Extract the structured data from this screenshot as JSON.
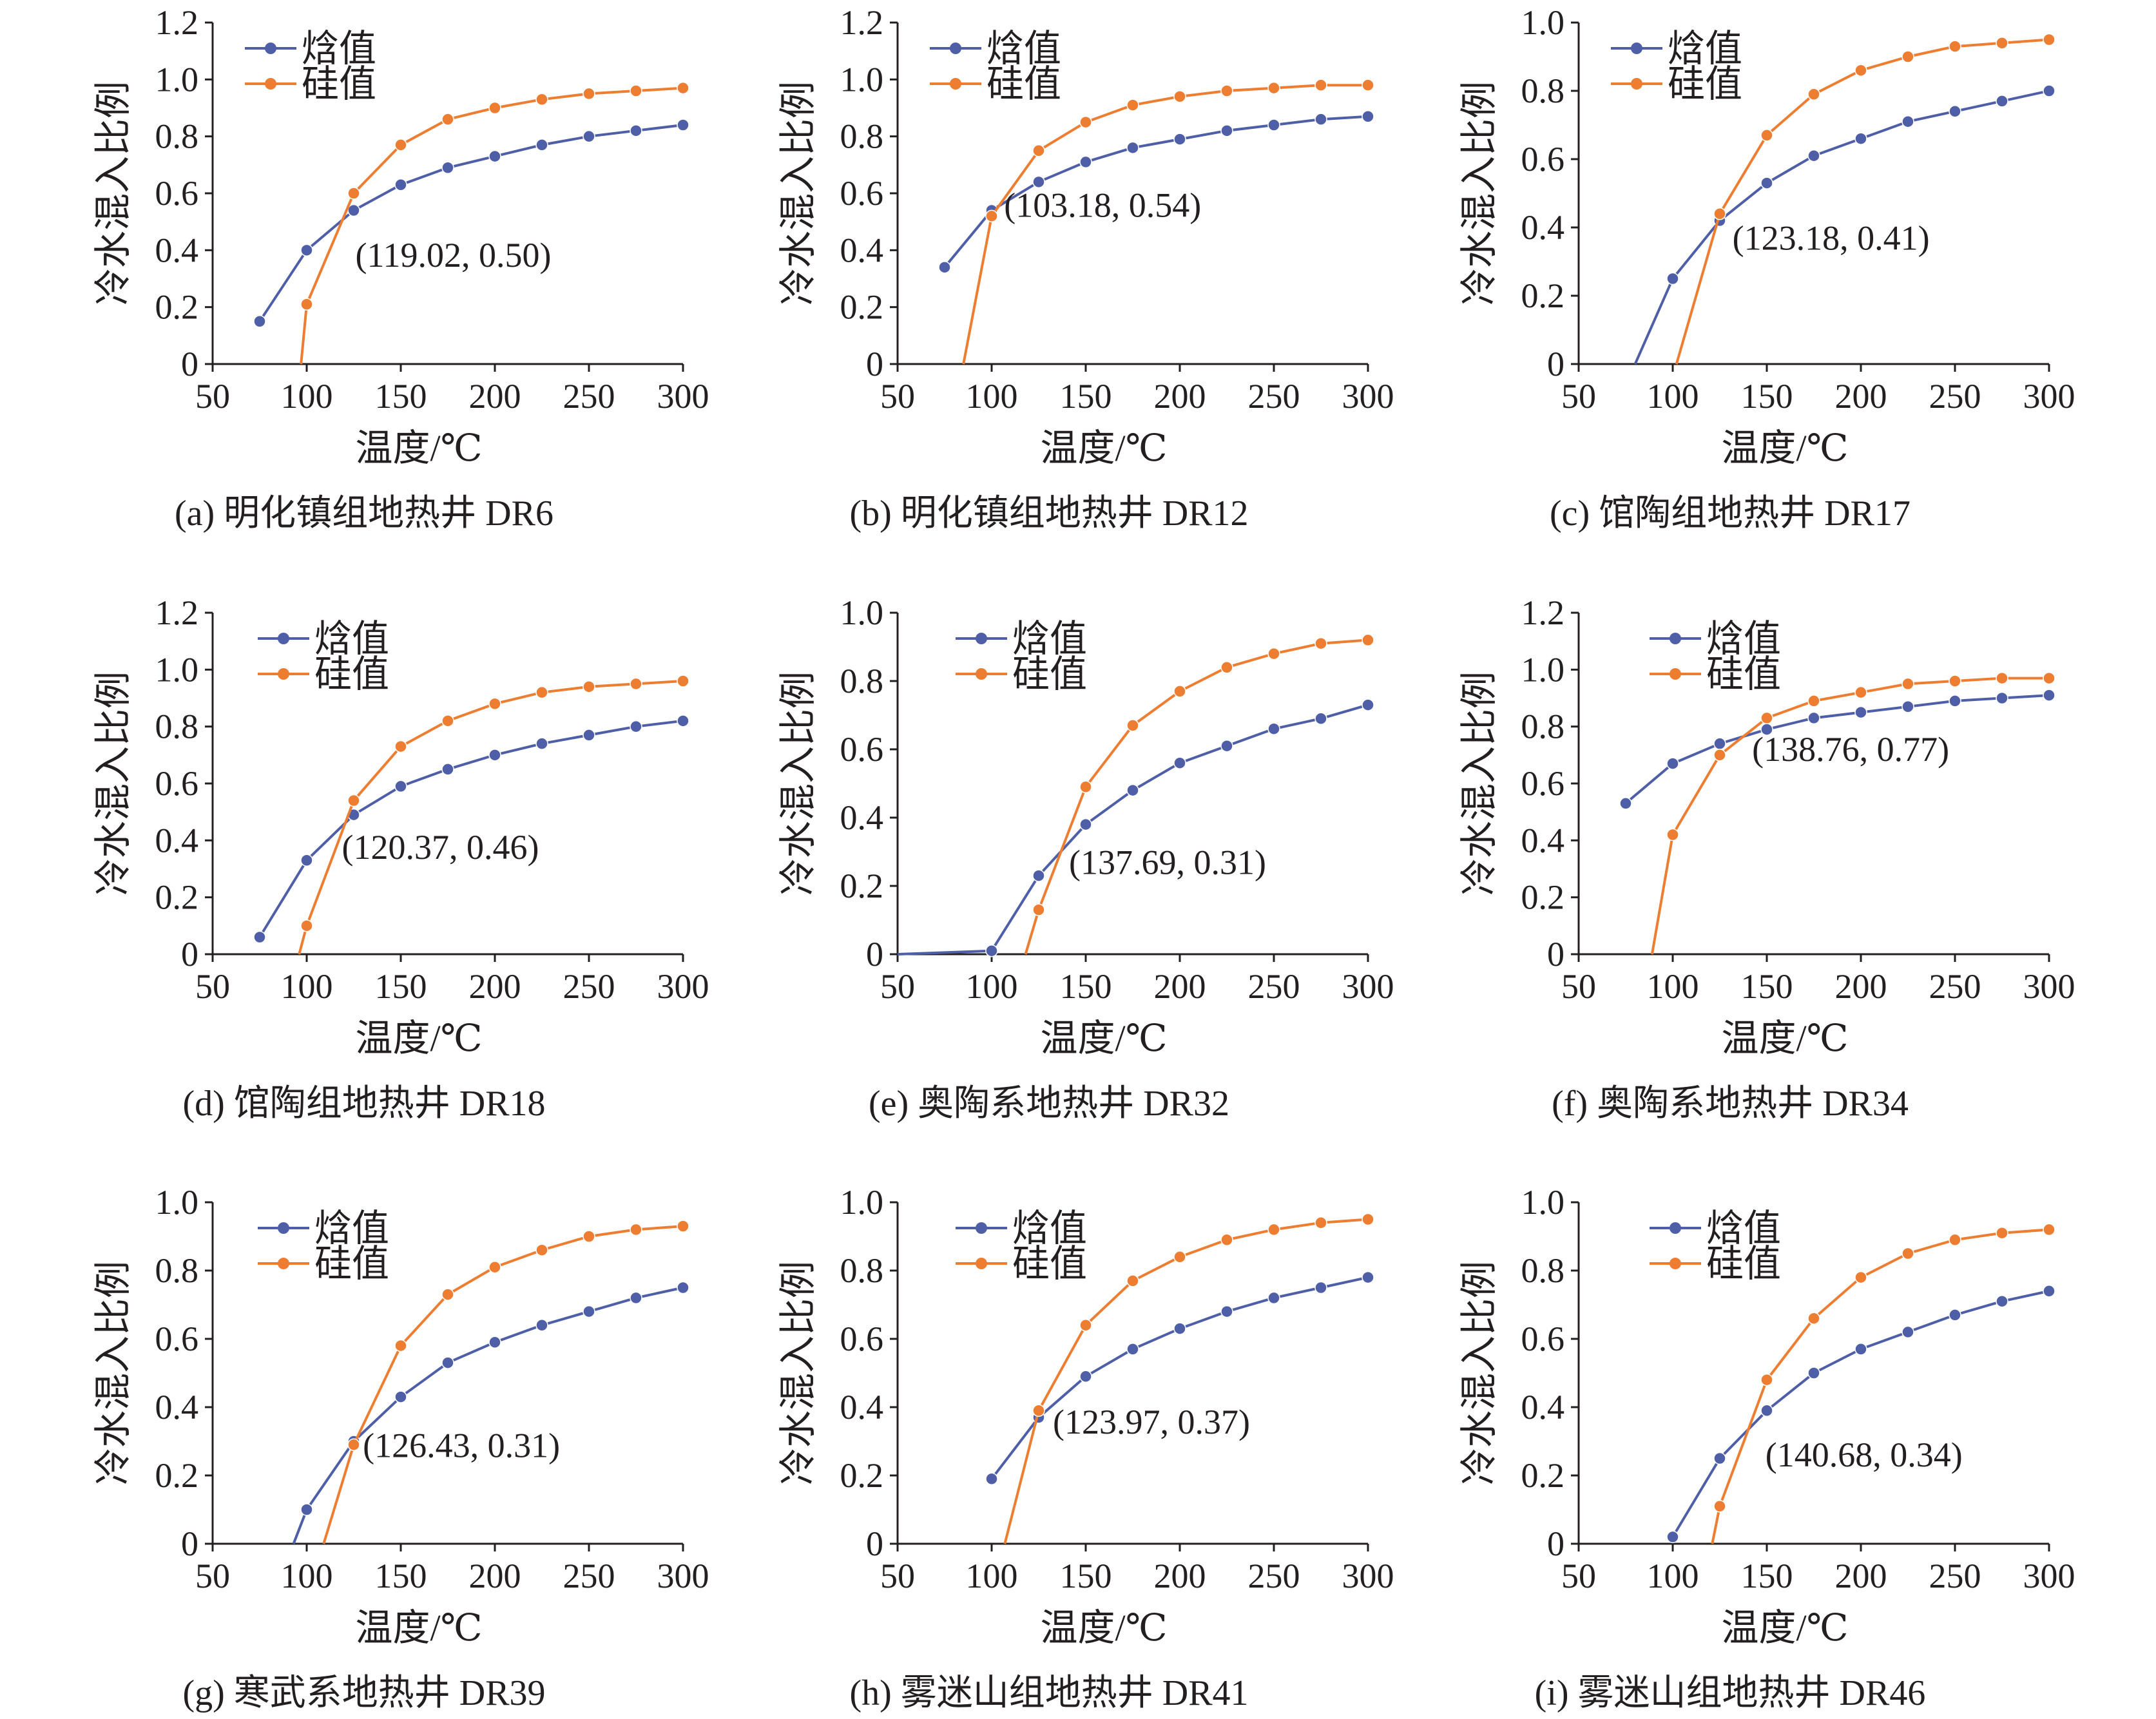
{
  "figure": {
    "colors": {
      "enthalpy": "#4e5fa8",
      "silica": "#ed7d31",
      "axis": "#231f20"
    },
    "legend": [
      "焓值",
      "硅值"
    ],
    "ylabel": "冷水混入比例",
    "xlabel": "温度/℃"
  },
  "chart_data": [
    {
      "type": "line",
      "caption": "(a) 明化镇组地热井 DR6",
      "xlabel": "温度/℃",
      "ylabel": "冷水混入比例",
      "xlim": [
        50,
        300
      ],
      "ylim": [
        0,
        1.2
      ],
      "xticks": [
        "50",
        "100",
        "150",
        "200",
        "250",
        "300"
      ],
      "yticks": [
        "0",
        "0.2",
        "0.4",
        "0.6",
        "0.8",
        "1.0",
        "1.2"
      ],
      "legend_position": "top-left",
      "annotation": "(119.02, 0.50)",
      "intersection": [
        119.02,
        0.5
      ],
      "series": [
        {
          "name": "焓值",
          "color": "#4e5fa8",
          "x": [
            75,
            100,
            125,
            150,
            175,
            200,
            225,
            250,
            275,
            300
          ],
          "y": [
            0.15,
            0.4,
            0.54,
            0.63,
            0.69,
            0.73,
            0.77,
            0.8,
            0.82,
            0.84
          ]
        },
        {
          "name": "硅值",
          "color": "#ed7d31",
          "x": [
            97,
            100,
            125,
            150,
            175,
            200,
            225,
            250,
            275,
            300
          ],
          "y": [
            0.0,
            0.21,
            0.6,
            0.77,
            0.86,
            0.9,
            0.93,
            0.95,
            0.96,
            0.97
          ],
          "markers_from": 1
        }
      ]
    },
    {
      "type": "line",
      "caption": "(b) 明化镇组地热井 DR12",
      "xlabel": "温度/℃",
      "ylabel": "冷水混入比例",
      "xlim": [
        50,
        300
      ],
      "ylim": [
        0,
        1.2
      ],
      "xticks": [
        "50",
        "100",
        "150",
        "200",
        "250",
        "300"
      ],
      "yticks": [
        "0",
        "0.2",
        "0.4",
        "0.6",
        "0.8",
        "1.0",
        "1.2"
      ],
      "legend_position": "top-left",
      "annotation": "(103.18, 0.54)",
      "intersection": [
        103.18,
        0.54
      ],
      "series": [
        {
          "name": "焓值",
          "color": "#4e5fa8",
          "x": [
            75,
            100,
            125,
            150,
            175,
            200,
            225,
            250,
            275,
            300
          ],
          "y": [
            0.34,
            0.54,
            0.64,
            0.71,
            0.76,
            0.79,
            0.82,
            0.84,
            0.86,
            0.87
          ]
        },
        {
          "name": "硅值",
          "color": "#ed7d31",
          "x": [
            85,
            100,
            125,
            150,
            175,
            200,
            225,
            250,
            275,
            300
          ],
          "y": [
            0.0,
            0.52,
            0.75,
            0.85,
            0.91,
            0.94,
            0.96,
            0.97,
            0.98,
            0.98
          ],
          "markers_from": 1
        }
      ]
    },
    {
      "type": "line",
      "caption": "(c) 馆陶组地热井 DR17",
      "xlabel": "温度/℃",
      "ylabel": "冷水混入比例",
      "xlim": [
        50,
        300
      ],
      "ylim": [
        0,
        1.0
      ],
      "xticks": [
        "50",
        "100",
        "150",
        "200",
        "250",
        "300"
      ],
      "yticks": [
        "0",
        "0.2",
        "0.4",
        "0.6",
        "0.8",
        "1.0"
      ],
      "legend_position": "top-left",
      "annotation": "(123.18, 0.41)",
      "intersection": [
        123.18,
        0.41
      ],
      "series": [
        {
          "name": "焓值",
          "color": "#4e5fa8",
          "x": [
            80,
            100,
            125,
            150,
            175,
            200,
            225,
            250,
            275,
            300
          ],
          "y": [
            0.0,
            0.25,
            0.42,
            0.53,
            0.61,
            0.66,
            0.71,
            0.74,
            0.77,
            0.8
          ],
          "markers_from": 1
        },
        {
          "name": "硅值",
          "color": "#ed7d31",
          "x": [
            102,
            125,
            150,
            175,
            200,
            225,
            250,
            275,
            300
          ],
          "y": [
            0.0,
            0.44,
            0.67,
            0.79,
            0.86,
            0.9,
            0.93,
            0.94,
            0.95
          ],
          "markers_from": 1
        }
      ]
    },
    {
      "type": "line",
      "caption": "(d) 馆陶组地热井 DR18",
      "xlabel": "温度/℃",
      "ylabel": "冷水混入比例",
      "xlim": [
        50,
        300
      ],
      "ylim": [
        0,
        1.2
      ],
      "xticks": [
        "50",
        "100",
        "150",
        "200",
        "250",
        "300"
      ],
      "yticks": [
        "0",
        "0.2",
        "0.4",
        "0.6",
        "0.8",
        "1.0",
        "1.2"
      ],
      "legend_position": "top-left",
      "annotation": "(120.37, 0.46)",
      "intersection": [
        120.37,
        0.46
      ],
      "series": [
        {
          "name": "焓值",
          "color": "#4e5fa8",
          "x": [
            75,
            100,
            125,
            150,
            175,
            200,
            225,
            250,
            275,
            300
          ],
          "y": [
            0.06,
            0.33,
            0.49,
            0.59,
            0.65,
            0.7,
            0.74,
            0.77,
            0.8,
            0.82
          ]
        },
        {
          "name": "硅值",
          "color": "#ed7d31",
          "x": [
            96,
            100,
            125,
            150,
            175,
            200,
            225,
            250,
            275,
            300
          ],
          "y": [
            0.0,
            0.1,
            0.54,
            0.73,
            0.82,
            0.88,
            0.92,
            0.94,
            0.95,
            0.96
          ],
          "markers_from": 1
        }
      ]
    },
    {
      "type": "line",
      "caption": "(e) 奥陶系地热井 DR32",
      "xlabel": "温度/℃",
      "ylabel": "冷水混入比例",
      "xlim": [
        50,
        300
      ],
      "ylim": [
        0,
        1.0
      ],
      "xticks": [
        "50",
        "100",
        "150",
        "200",
        "250",
        "300"
      ],
      "yticks": [
        "0",
        "0.2",
        "0.4",
        "0.6",
        "0.8",
        "1.0"
      ],
      "legend_position": "top-left",
      "annotation": "(137.69, 0.31)",
      "intersection": [
        137.69,
        0.31
      ],
      "series": [
        {
          "name": "焓值",
          "color": "#4e5fa8",
          "x": [
            50,
            100,
            125,
            150,
            175,
            200,
            225,
            250,
            275,
            300
          ],
          "y": [
            0.0,
            0.01,
            0.23,
            0.38,
            0.48,
            0.56,
            0.61,
            0.66,
            0.69,
            0.73
          ],
          "markers_from": 1
        },
        {
          "name": "硅值",
          "color": "#ed7d31",
          "x": [
            118,
            125,
            150,
            175,
            200,
            225,
            250,
            275,
            300
          ],
          "y": [
            0.0,
            0.13,
            0.49,
            0.67,
            0.77,
            0.84,
            0.88,
            0.91,
            0.92
          ],
          "markers_from": 1
        }
      ]
    },
    {
      "type": "line",
      "caption": "(f) 奥陶系地热井 DR34",
      "xlabel": "温度/℃",
      "ylabel": "冷水混入比例",
      "xlim": [
        50,
        300
      ],
      "ylim": [
        0,
        1.2
      ],
      "xticks": [
        "50",
        "100",
        "150",
        "200",
        "250",
        "300"
      ],
      "yticks": [
        "0",
        "0.2",
        "0.4",
        "0.6",
        "0.8",
        "1.0",
        "1.2"
      ],
      "legend_position": "top-left",
      "annotation": "(138.76, 0.77)",
      "intersection": [
        138.76,
        0.77
      ],
      "series": [
        {
          "name": "焓值",
          "color": "#4e5fa8",
          "x": [
            75,
            100,
            125,
            150,
            175,
            200,
            225,
            250,
            275,
            300
          ],
          "y": [
            0.53,
            0.67,
            0.74,
            0.79,
            0.83,
            0.85,
            0.87,
            0.89,
            0.9,
            0.91
          ]
        },
        {
          "name": "硅值",
          "color": "#ed7d31",
          "x": [
            89,
            100,
            125,
            150,
            175,
            200,
            225,
            250,
            275,
            300
          ],
          "y": [
            0.0,
            0.42,
            0.7,
            0.83,
            0.89,
            0.92,
            0.95,
            0.96,
            0.97,
            0.97
          ],
          "markers_from": 1
        }
      ]
    },
    {
      "type": "line",
      "caption": "(g) 寒武系地热井 DR39",
      "xlabel": "温度/℃",
      "ylabel": "冷水混入比例",
      "xlim": [
        50,
        300
      ],
      "ylim": [
        0,
        1.0
      ],
      "xticks": [
        "50",
        "100",
        "150",
        "200",
        "250",
        "300"
      ],
      "yticks": [
        "0",
        "0.2",
        "0.4",
        "0.6",
        "0.8",
        "1.0"
      ],
      "legend_position": "top-left",
      "annotation": "(126.43, 0.31)",
      "intersection": [
        126.43,
        0.31
      ],
      "series": [
        {
          "name": "焓值",
          "color": "#4e5fa8",
          "x": [
            93,
            100,
            125,
            150,
            175,
            200,
            225,
            250,
            275,
            300
          ],
          "y": [
            0.0,
            0.1,
            0.3,
            0.43,
            0.53,
            0.59,
            0.64,
            0.68,
            0.72,
            0.75
          ],
          "markers_from": 1
        },
        {
          "name": "硅值",
          "color": "#ed7d31",
          "x": [
            109,
            125,
            150,
            175,
            200,
            225,
            250,
            275,
            300
          ],
          "y": [
            0.0,
            0.29,
            0.58,
            0.73,
            0.81,
            0.86,
            0.9,
            0.92,
            0.93
          ],
          "markers_from": 1
        }
      ]
    },
    {
      "type": "line",
      "caption": "(h) 雾迷山组地热井 DR41",
      "xlabel": "温度/℃",
      "ylabel": "冷水混入比例",
      "xlim": [
        50,
        300
      ],
      "ylim": [
        0,
        1.0
      ],
      "xticks": [
        "50",
        "100",
        "150",
        "200",
        "250",
        "300"
      ],
      "yticks": [
        "0",
        "0.2",
        "0.4",
        "0.6",
        "0.8",
        "1.0"
      ],
      "legend_position": "top-left",
      "annotation": "(123.97, 0.37)",
      "intersection": [
        123.97,
        0.37
      ],
      "series": [
        {
          "name": "焓值",
          "color": "#4e5fa8",
          "x": [
            100,
            125,
            150,
            175,
            200,
            225,
            250,
            275,
            300
          ],
          "y": [
            0.19,
            0.37,
            0.49,
            0.57,
            0.63,
            0.68,
            0.72,
            0.75,
            0.78
          ]
        },
        {
          "name": "硅值",
          "color": "#ed7d31",
          "x": [
            107,
            125,
            150,
            175,
            200,
            225,
            250,
            275,
            300
          ],
          "y": [
            0.0,
            0.39,
            0.64,
            0.77,
            0.84,
            0.89,
            0.92,
            0.94,
            0.95
          ],
          "markers_from": 1
        }
      ]
    },
    {
      "type": "line",
      "caption": "(i) 雾迷山组地热井 DR46",
      "xlabel": "温度/℃",
      "ylabel": "冷水混入比例",
      "xlim": [
        50,
        300
      ],
      "ylim": [
        0,
        1.0
      ],
      "xticks": [
        "50",
        "100",
        "150",
        "200",
        "250",
        "300"
      ],
      "yticks": [
        "0",
        "0.2",
        "0.4",
        "0.6",
        "0.8",
        "1.0"
      ],
      "legend_position": "top-left",
      "annotation": "(140.68, 0.34)",
      "intersection": [
        140.68,
        0.34
      ],
      "series": [
        {
          "name": "焓值",
          "color": "#4e5fa8",
          "x": [
            100,
            125,
            150,
            175,
            200,
            225,
            250,
            275,
            300
          ],
          "y": [
            0.02,
            0.25,
            0.39,
            0.5,
            0.57,
            0.62,
            0.67,
            0.71,
            0.74
          ]
        },
        {
          "name": "硅值",
          "color": "#ed7d31",
          "x": [
            121,
            125,
            150,
            175,
            200,
            225,
            250,
            275,
            300
          ],
          "y": [
            0.0,
            0.11,
            0.48,
            0.66,
            0.78,
            0.85,
            0.89,
            0.91,
            0.92
          ],
          "markers_from": 1
        }
      ]
    }
  ]
}
